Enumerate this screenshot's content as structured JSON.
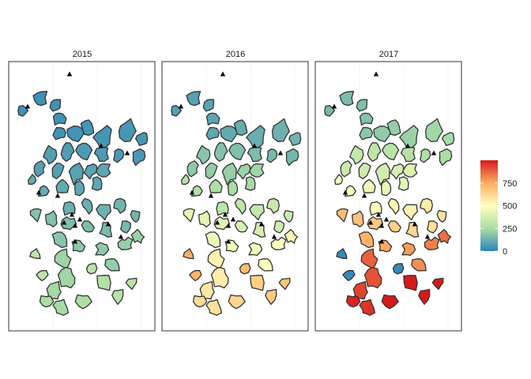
{
  "panels": [
    {
      "label": "2015",
      "intensity": 0.2
    },
    {
      "label": "2016",
      "intensity": 0.42
    },
    {
      "label": "2017",
      "intensity": 0.58
    }
  ],
  "legend": {
    "ticks": [
      0,
      250,
      500,
      750
    ],
    "max": 1000,
    "ramp": [
      "#2b83ba",
      "#abdda4",
      "#ffffbf",
      "#fdae61",
      "#d7191c"
    ]
  },
  "colors": {
    "outline": "#333333",
    "panel_border": "#333333",
    "grid": "#f0f0f0",
    "marker": "#000000"
  },
  "marker_shape": "triangle-filled"
}
